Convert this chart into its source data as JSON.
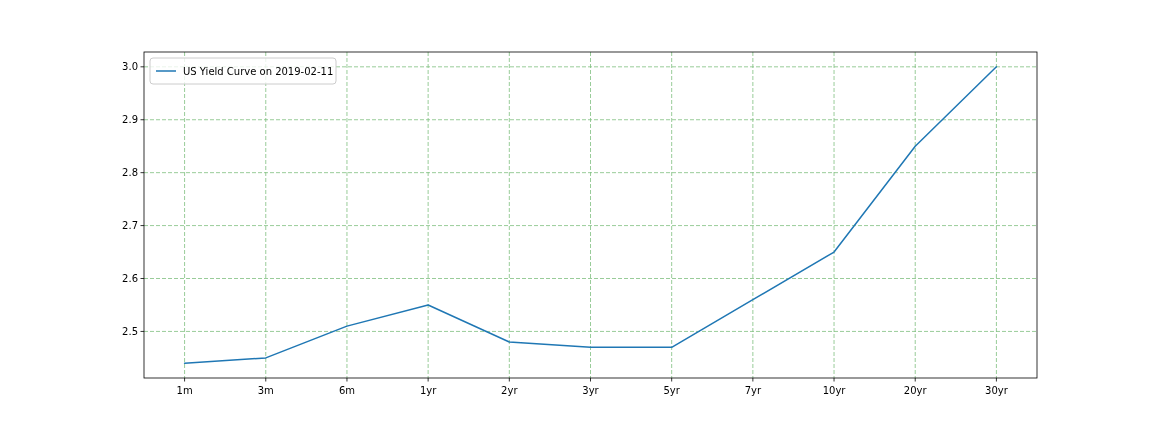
{
  "chart_data": {
    "type": "line",
    "categories": [
      "1m",
      "3m",
      "6m",
      "1yr",
      "2yr",
      "3yr",
      "5yr",
      "7yr",
      "10yr",
      "20yr",
      "30yr"
    ],
    "series": [
      {
        "name": "US Yield Curve on 2019-02-11",
        "color": "#1f77b4",
        "values": [
          2.44,
          2.45,
          2.51,
          2.55,
          2.48,
          2.47,
          2.47,
          2.56,
          2.65,
          2.85,
          3.0
        ]
      }
    ],
    "ylim": [
      2.412,
      3.028
    ],
    "yticks": [
      2.5,
      2.6,
      2.7,
      2.8,
      2.9,
      {
        "value": 3.0,
        "label": "3.0"
      }
    ],
    "grid": true,
    "legend": "top left",
    "line_style": "solid",
    "marker": "none"
  }
}
